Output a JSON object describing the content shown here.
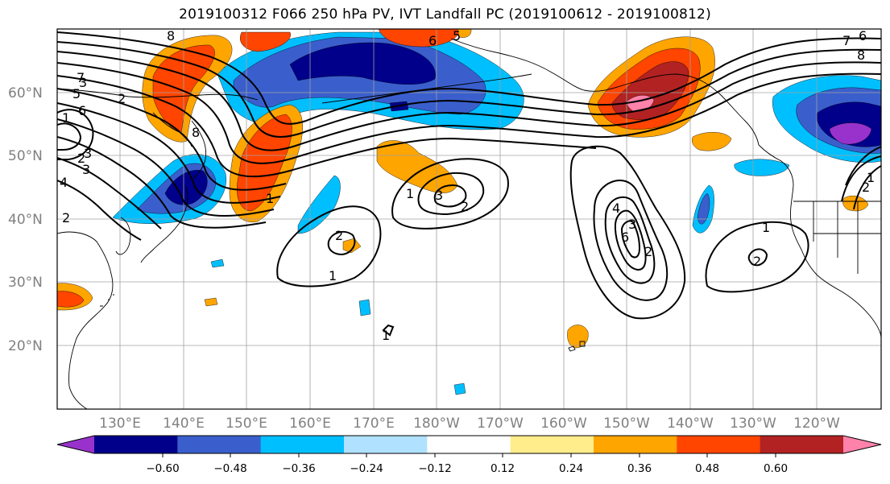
{
  "title": "2019100312 F066 250 hPa PV, IVT Landfall PC (2019100612 - 2019100812)",
  "lat_labels": [
    "60°N",
    "50°N",
    "40°N",
    "30°N",
    "20°N"
  ],
  "lon_labels": [
    "130°E",
    "140°E",
    "150°E",
    "160°E",
    "170°E",
    "180°W",
    "170°W",
    "160°W",
    "150°W",
    "140°W",
    "130°W",
    "120°W"
  ],
  "colorbar": {
    "ticks": [
      "−0.60",
      "−0.48",
      "−0.36",
      "−0.24",
      "−0.12",
      "0.12",
      "0.24",
      "0.36",
      "0.48",
      "0.60"
    ],
    "colors": [
      "#9932cc",
      "#00008b",
      "#3a5fcd",
      "#00bfff",
      "#b0e2ff",
      "#ffffff",
      "#ffec8b",
      "#ffa500",
      "#ff4500",
      "#b22222",
      "#ff82ab"
    ]
  },
  "contour_labels": [
    "8",
    "7",
    "6",
    "5",
    "3",
    "2",
    "1",
    "4",
    "8",
    "6",
    "5",
    "3",
    "2",
    "1",
    "2",
    "1",
    "3",
    "2",
    "1",
    "4",
    "6",
    "3",
    "2",
    "1",
    "2",
    "6",
    "7",
    "8",
    "1",
    "2",
    "2",
    "1",
    "3"
  ]
}
